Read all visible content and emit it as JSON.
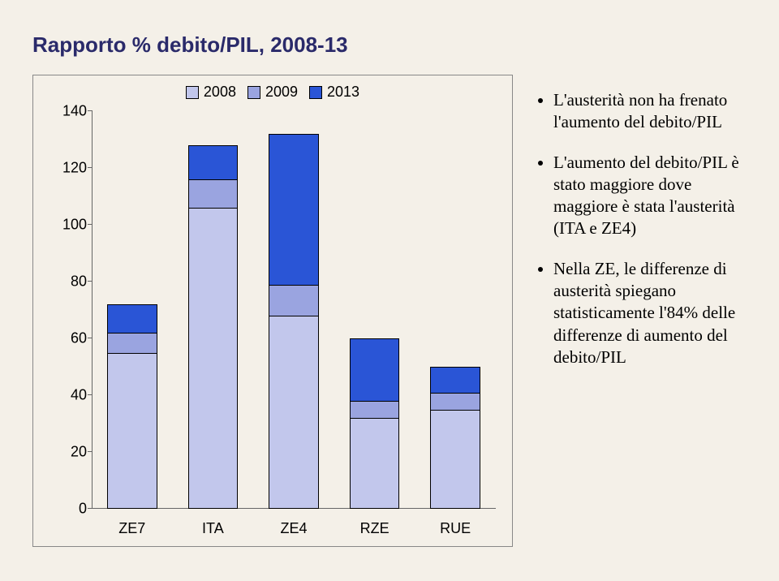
{
  "title": "Rapporto % debito/PIL, 2008-13",
  "chart": {
    "type": "bar-stacked-visual",
    "background_color": "#f4f0e8",
    "border_color": "#888888",
    "legend_items": [
      {
        "label": "2008",
        "color": "#c2c7ec"
      },
      {
        "label": "2009",
        "color": "#9aa4e0"
      },
      {
        "label": "2013",
        "color": "#2a55d6"
      }
    ],
    "ylim": [
      0,
      140
    ],
    "ytick_step": 20,
    "ytick_labels": [
      "0",
      "20",
      "40",
      "60",
      "80",
      "100",
      "120",
      "140"
    ],
    "axis_color": "#666666",
    "categories": [
      "ZE7",
      "ITA",
      "ZE4",
      "RZE",
      "RUE"
    ],
    "series": {
      "2008": [
        55,
        106,
        68,
        32,
        35
      ],
      "2009": [
        62,
        116,
        79,
        38,
        41
      ],
      "2013": [
        72,
        128,
        132,
        60,
        50
      ]
    },
    "colors": {
      "2008": "#c2c7ec",
      "2009": "#9aa4e0",
      "2013": "#2a55d6"
    },
    "label_fontsize": 18,
    "bar_border_color": "#000000"
  },
  "bullets": [
    "L'austerità non ha frenato l'aumento del debito/PIL",
    "L'aumento del debito/PIL è stato maggiore dove maggiore è stata l'austerità (ITA e ZE4)",
    "Nella ZE, le differenze di austerità spiegano statisticamente  l'84% delle differenze di aumento del debito/PIL"
  ]
}
